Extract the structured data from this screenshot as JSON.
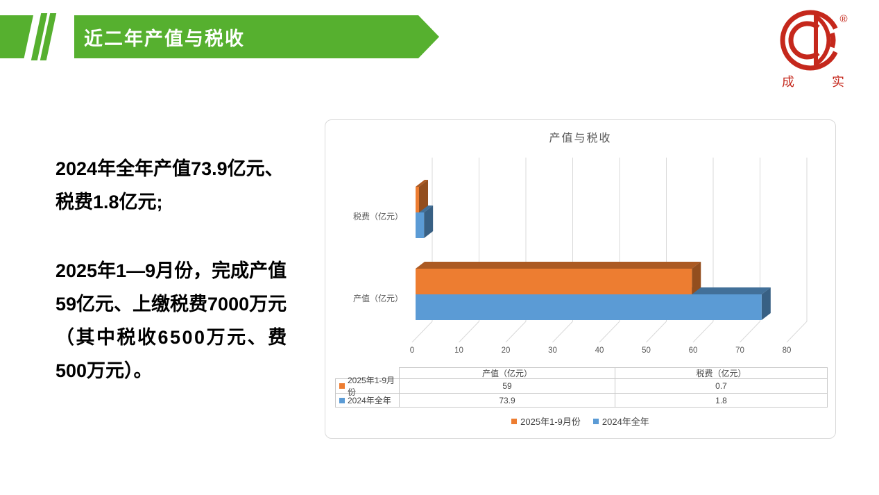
{
  "header": {
    "title": "近二年产值与税收",
    "banner_color": "#56B02F"
  },
  "logo": {
    "reg": "®",
    "char_left": "成",
    "char_right": "实",
    "color": "#C5281C"
  },
  "intro": {
    "p1_lines": [
      "2024年全年产值73.9亿元、",
      "税费1.8亿元;"
    ],
    "p2_lines": [
      "2025年1—9月份，完成产值",
      "59亿元、上缴税费7000万元",
      "（其中税收6500万元、费",
      "500万元）。"
    ]
  },
  "chart_data": {
    "type": "bar",
    "orientation": "horizontal",
    "style": "3d",
    "title": "产值与税收",
    "categories": [
      "税费（亿元）",
      "产值（亿元）"
    ],
    "series": [
      {
        "name": "2025年1-9月份",
        "color": "#ED7D31",
        "values": [
          0.7,
          59
        ]
      },
      {
        "name": "2024年全年",
        "color": "#5B9BD5",
        "values": [
          1.8,
          73.9
        ]
      }
    ],
    "xlim": [
      0,
      80
    ],
    "x_ticks": [
      0,
      10,
      20,
      30,
      40,
      50,
      60,
      70,
      80
    ],
    "grid": true,
    "legend_position": "bottom",
    "data_table": {
      "columns": [
        "产值（亿元）",
        "税费（亿元）"
      ],
      "rows": [
        {
          "name": "2025年1-9月份",
          "values": [
            "59",
            "0.7"
          ]
        },
        {
          "name": "2024年全年",
          "values": [
            "73.9",
            "1.8"
          ]
        }
      ]
    }
  }
}
